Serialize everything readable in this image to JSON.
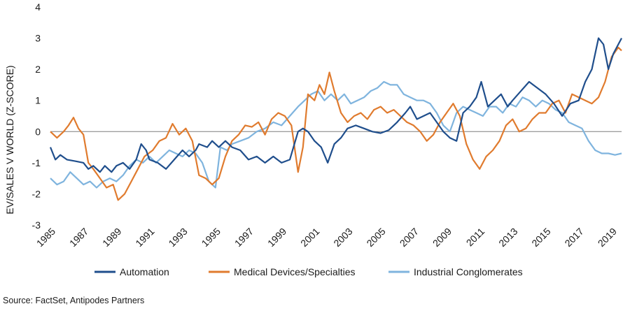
{
  "chart_data": {
    "type": "line",
    "ylabel": "EV/SALES V WORLD (Z-SCORE)",
    "xlabel": "",
    "xlim": [
      1985,
      2019.6
    ],
    "ylim": [
      -3,
      4
    ],
    "yticks": [
      -3,
      -2,
      -1,
      0,
      1,
      2,
      3,
      4
    ],
    "xticks": [
      1985,
      1987,
      1989,
      1991,
      1993,
      1995,
      1997,
      1999,
      2001,
      2003,
      2005,
      2007,
      2009,
      2011,
      2013,
      2015,
      2017,
      2019
    ],
    "legend_position": "bottom",
    "grid": false,
    "series": [
      {
        "name": "Automation",
        "color": "#1f4e8c",
        "points": [
          [
            1985,
            -0.5
          ],
          [
            1985.3,
            -0.9
          ],
          [
            1985.6,
            -0.75
          ],
          [
            1986,
            -0.9
          ],
          [
            1986.5,
            -0.95
          ],
          [
            1987,
            -1.0
          ],
          [
            1987.3,
            -1.2
          ],
          [
            1987.6,
            -1.1
          ],
          [
            1988,
            -1.3
          ],
          [
            1988.3,
            -1.1
          ],
          [
            1988.7,
            -1.3
          ],
          [
            1989,
            -1.1
          ],
          [
            1989.4,
            -1.0
          ],
          [
            1989.8,
            -1.2
          ],
          [
            1990.2,
            -0.9
          ],
          [
            1990.5,
            -0.4
          ],
          [
            1990.8,
            -0.6
          ],
          [
            1991,
            -0.9
          ],
          [
            1991.5,
            -1.0
          ],
          [
            1992,
            -1.2
          ],
          [
            1992.5,
            -0.9
          ],
          [
            1993,
            -0.6
          ],
          [
            1993.4,
            -0.8
          ],
          [
            1993.8,
            -0.6
          ],
          [
            1994,
            -0.4
          ],
          [
            1994.5,
            -0.5
          ],
          [
            1994.8,
            -0.3
          ],
          [
            1995.2,
            -0.5
          ],
          [
            1995.6,
            -0.3
          ],
          [
            1996,
            -0.5
          ],
          [
            1996.5,
            -0.6
          ],
          [
            1997,
            -0.9
          ],
          [
            1997.5,
            -0.8
          ],
          [
            1998,
            -1.0
          ],
          [
            1998.5,
            -0.8
          ],
          [
            1999,
            -1.0
          ],
          [
            1999.5,
            -0.9
          ],
          [
            2000,
            0.0
          ],
          [
            2000.3,
            0.1
          ],
          [
            2000.6,
            0.0
          ],
          [
            2001,
            -0.3
          ],
          [
            2001.4,
            -0.5
          ],
          [
            2001.8,
            -1.0
          ],
          [
            2002.2,
            -0.4
          ],
          [
            2002.6,
            -0.2
          ],
          [
            2003,
            0.1
          ],
          [
            2003.5,
            0.2
          ],
          [
            2004,
            0.1
          ],
          [
            2004.5,
            0.0
          ],
          [
            2005,
            -0.05
          ],
          [
            2005.5,
            0.05
          ],
          [
            2006,
            0.3
          ],
          [
            2006.5,
            0.6
          ],
          [
            2006.8,
            0.8
          ],
          [
            2007.2,
            0.4
          ],
          [
            2007.6,
            0.5
          ],
          [
            2008,
            0.6
          ],
          [
            2008.4,
            0.3
          ],
          [
            2008.8,
            0.0
          ],
          [
            2009.2,
            -0.2
          ],
          [
            2009.6,
            -0.3
          ],
          [
            2010,
            0.6
          ],
          [
            2010.4,
            0.8
          ],
          [
            2010.8,
            1.1
          ],
          [
            2011.1,
            1.6
          ],
          [
            2011.5,
            0.8
          ],
          [
            2011.9,
            1.0
          ],
          [
            2012.3,
            1.2
          ],
          [
            2012.7,
            0.8
          ],
          [
            2013,
            1.0
          ],
          [
            2013.5,
            1.3
          ],
          [
            2014,
            1.6
          ],
          [
            2014.5,
            1.4
          ],
          [
            2015,
            1.2
          ],
          [
            2015.5,
            0.9
          ],
          [
            2016,
            0.5
          ],
          [
            2016.5,
            0.9
          ],
          [
            2017,
            1.0
          ],
          [
            2017.4,
            1.6
          ],
          [
            2017.8,
            2.0
          ],
          [
            2018.2,
            3.0
          ],
          [
            2018.5,
            2.8
          ],
          [
            2018.8,
            2.0
          ],
          [
            2019.1,
            2.5
          ],
          [
            2019.4,
            2.8
          ],
          [
            2019.6,
            3.0
          ]
        ]
      },
      {
        "name": "Medical Devices/Specialties",
        "color": "#e07b2e",
        "points": [
          [
            1985,
            0.0
          ],
          [
            1985.4,
            -0.2
          ],
          [
            1985.8,
            0.0
          ],
          [
            1986.1,
            0.2
          ],
          [
            1986.4,
            0.45
          ],
          [
            1986.7,
            0.1
          ],
          [
            1987,
            -0.1
          ],
          [
            1987.3,
            -1.0
          ],
          [
            1987.6,
            -1.2
          ],
          [
            1988,
            -1.5
          ],
          [
            1988.4,
            -1.8
          ],
          [
            1988.8,
            -1.7
          ],
          [
            1989.1,
            -2.2
          ],
          [
            1989.5,
            -2.0
          ],
          [
            1989.9,
            -1.6
          ],
          [
            1990.3,
            -1.2
          ],
          [
            1990.7,
            -0.8
          ],
          [
            1991.2,
            -0.6
          ],
          [
            1991.6,
            -0.3
          ],
          [
            1992,
            -0.2
          ],
          [
            1992.4,
            0.25
          ],
          [
            1992.8,
            -0.1
          ],
          [
            1993.2,
            0.1
          ],
          [
            1993.6,
            -0.3
          ],
          [
            1994,
            -1.4
          ],
          [
            1994.4,
            -1.5
          ],
          [
            1994.8,
            -1.7
          ],
          [
            1995.2,
            -1.5
          ],
          [
            1995.6,
            -0.8
          ],
          [
            1996,
            -0.3
          ],
          [
            1996.4,
            -0.1
          ],
          [
            1996.8,
            0.2
          ],
          [
            1997.2,
            0.15
          ],
          [
            1997.6,
            0.3
          ],
          [
            1998,
            -0.1
          ],
          [
            1998.4,
            0.4
          ],
          [
            1998.8,
            0.6
          ],
          [
            1999.2,
            0.5
          ],
          [
            1999.6,
            0.2
          ],
          [
            2000,
            -1.3
          ],
          [
            2000.3,
            -0.5
          ],
          [
            2000.6,
            1.2
          ],
          [
            2001,
            1.0
          ],
          [
            2001.3,
            1.5
          ],
          [
            2001.6,
            1.2
          ],
          [
            2001.9,
            1.9
          ],
          [
            2002.2,
            1.3
          ],
          [
            2002.6,
            0.6
          ],
          [
            2003,
            0.3
          ],
          [
            2003.4,
            0.5
          ],
          [
            2003.8,
            0.6
          ],
          [
            2004.2,
            0.4
          ],
          [
            2004.6,
            0.7
          ],
          [
            2005,
            0.8
          ],
          [
            2005.4,
            0.6
          ],
          [
            2005.8,
            0.7
          ],
          [
            2006.2,
            0.5
          ],
          [
            2006.6,
            0.3
          ],
          [
            2007,
            0.2
          ],
          [
            2007.4,
            0.0
          ],
          [
            2007.8,
            -0.3
          ],
          [
            2008.2,
            -0.1
          ],
          [
            2008.6,
            0.3
          ],
          [
            2009,
            0.6
          ],
          [
            2009.4,
            0.9
          ],
          [
            2009.8,
            0.5
          ],
          [
            2010.2,
            -0.4
          ],
          [
            2010.6,
            -0.9
          ],
          [
            2011,
            -1.2
          ],
          [
            2011.4,
            -0.8
          ],
          [
            2011.8,
            -0.6
          ],
          [
            2012.2,
            -0.3
          ],
          [
            2012.6,
            0.2
          ],
          [
            2013,
            0.4
          ],
          [
            2013.4,
            0.0
          ],
          [
            2013.8,
            0.1
          ],
          [
            2014.2,
            0.4
          ],
          [
            2014.6,
            0.6
          ],
          [
            2015,
            0.6
          ],
          [
            2015.4,
            0.9
          ],
          [
            2015.8,
            1.0
          ],
          [
            2016.2,
            0.6
          ],
          [
            2016.6,
            1.2
          ],
          [
            2017,
            1.1
          ],
          [
            2017.4,
            1.0
          ],
          [
            2017.8,
            0.9
          ],
          [
            2018.2,
            1.1
          ],
          [
            2018.6,
            1.6
          ],
          [
            2019,
            2.4
          ],
          [
            2019.4,
            2.7
          ],
          [
            2019.6,
            2.6
          ]
        ]
      },
      {
        "name": "Industrial Conglomerates",
        "color": "#7fb4de",
        "points": [
          [
            1985,
            -1.5
          ],
          [
            1985.4,
            -1.7
          ],
          [
            1985.8,
            -1.6
          ],
          [
            1986.2,
            -1.3
          ],
          [
            1986.6,
            -1.5
          ],
          [
            1987,
            -1.7
          ],
          [
            1987.4,
            -1.6
          ],
          [
            1987.8,
            -1.8
          ],
          [
            1988.2,
            -1.6
          ],
          [
            1988.6,
            -1.5
          ],
          [
            1989,
            -1.6
          ],
          [
            1989.4,
            -1.4
          ],
          [
            1989.8,
            -1.1
          ],
          [
            1990.2,
            -0.9
          ],
          [
            1990.6,
            -1.0
          ],
          [
            1991,
            -0.8
          ],
          [
            1991.4,
            -1.0
          ],
          [
            1991.8,
            -0.8
          ],
          [
            1992.2,
            -0.6
          ],
          [
            1992.6,
            -0.7
          ],
          [
            1993,
            -0.8
          ],
          [
            1993.4,
            -0.6
          ],
          [
            1993.8,
            -0.7
          ],
          [
            1994.2,
            -1.0
          ],
          [
            1994.6,
            -1.6
          ],
          [
            1995,
            -1.8
          ],
          [
            1995.3,
            -0.5
          ],
          [
            1995.7,
            -0.6
          ],
          [
            1996,
            -0.4
          ],
          [
            1996.5,
            -0.3
          ],
          [
            1997,
            -0.2
          ],
          [
            1997.5,
            0.0
          ],
          [
            1998,
            0.1
          ],
          [
            1998.5,
            0.3
          ],
          [
            1999,
            0.2
          ],
          [
            1999.5,
            0.5
          ],
          [
            2000,
            0.8
          ],
          [
            2000.4,
            1.0
          ],
          [
            2000.8,
            1.2
          ],
          [
            2001.2,
            1.3
          ],
          [
            2001.6,
            1.0
          ],
          [
            2002,
            1.2
          ],
          [
            2002.4,
            1.0
          ],
          [
            2002.8,
            1.2
          ],
          [
            2003.2,
            0.9
          ],
          [
            2003.6,
            1.0
          ],
          [
            2004,
            1.1
          ],
          [
            2004.4,
            1.3
          ],
          [
            2004.8,
            1.4
          ],
          [
            2005.2,
            1.6
          ],
          [
            2005.6,
            1.5
          ],
          [
            2006,
            1.5
          ],
          [
            2006.4,
            1.2
          ],
          [
            2006.8,
            1.1
          ],
          [
            2007.2,
            1.0
          ],
          [
            2007.6,
            1.0
          ],
          [
            2008,
            0.9
          ],
          [
            2008.4,
            0.6
          ],
          [
            2008.8,
            0.2
          ],
          [
            2009.2,
            0.0
          ],
          [
            2009.6,
            0.6
          ],
          [
            2010,
            0.8
          ],
          [
            2010.4,
            0.7
          ],
          [
            2010.8,
            0.6
          ],
          [
            2011.2,
            0.5
          ],
          [
            2011.6,
            0.8
          ],
          [
            2012,
            0.8
          ],
          [
            2012.4,
            0.6
          ],
          [
            2012.8,
            0.9
          ],
          [
            2013.2,
            0.8
          ],
          [
            2013.6,
            1.1
          ],
          [
            2014,
            1.0
          ],
          [
            2014.4,
            0.8
          ],
          [
            2014.8,
            1.0
          ],
          [
            2015.2,
            0.9
          ],
          [
            2015.6,
            0.7
          ],
          [
            2016,
            0.6
          ],
          [
            2016.4,
            0.3
          ],
          [
            2016.8,
            0.2
          ],
          [
            2017.2,
            0.1
          ],
          [
            2017.6,
            -0.3
          ],
          [
            2018,
            -0.6
          ],
          [
            2018.4,
            -0.7
          ],
          [
            2018.8,
            -0.7
          ],
          [
            2019.2,
            -0.75
          ],
          [
            2019.6,
            -0.7
          ]
        ]
      }
    ]
  },
  "source_note": "Source: FactSet, Antipodes Partners"
}
